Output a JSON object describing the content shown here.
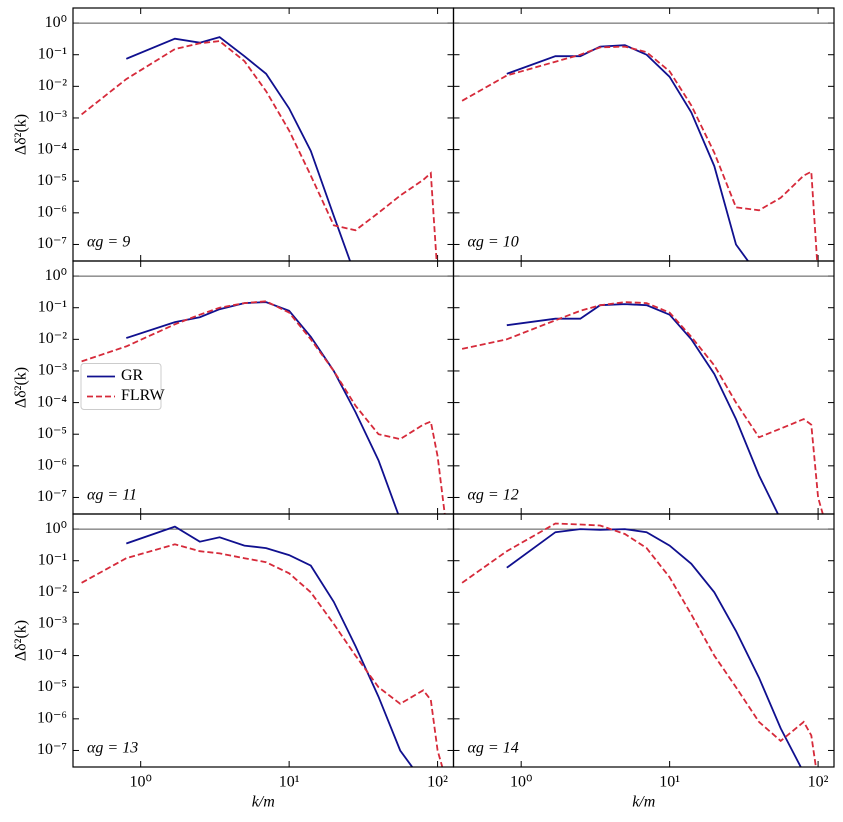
{
  "chart_data": [
    {
      "type": "line",
      "annotation": "αg = 9",
      "ylabel": "Δδ²(k)",
      "xlim": [
        0.35,
        128
      ],
      "ylim": [
        3e-08,
        3
      ],
      "log": true,
      "hline": 1,
      "yticks": [
        {
          "value": 1,
          "label": "10⁰"
        },
        {
          "value": 0.1,
          "label": "10⁻¹"
        },
        {
          "value": 0.01,
          "label": "10⁻²"
        },
        {
          "value": 0.001,
          "label": "10⁻³"
        },
        {
          "value": 0.0001,
          "label": "10⁻⁴"
        },
        {
          "value": 1e-05,
          "label": "10⁻⁵"
        },
        {
          "value": 1e-06,
          "label": "10⁻⁶"
        },
        {
          "value": 1e-07,
          "label": "10⁻⁷"
        }
      ],
      "x": [
        0.4,
        0.8,
        1.7,
        2.5,
        3.4,
        5,
        7,
        10,
        14,
        20,
        28,
        40,
        56,
        80,
        90,
        100,
        115
      ],
      "series": [
        {
          "color": "#10108f",
          "dash": false,
          "values": [
            null,
            0.074,
            0.32,
            0.24,
            0.36,
            0.09,
            0.025,
            0.002,
            9e-05,
            8e-07,
            1e-08,
            null,
            null,
            null,
            null,
            null,
            null
          ]
        },
        {
          "color": "#d62a3a",
          "dash": true,
          "values": [
            0.0013,
            0.017,
            0.15,
            0.23,
            0.27,
            0.063,
            0.007,
            0.0004,
            1.5e-05,
            4e-07,
            2.8e-07,
            1e-06,
            3.5e-06,
            1.1e-05,
            1.8e-05,
            1e-08,
            null
          ]
        }
      ]
    },
    {
      "type": "line",
      "annotation": "αg = 10",
      "xlim": [
        0.35,
        128
      ],
      "ylim": [
        3e-08,
        3
      ],
      "log": true,
      "hline": 1,
      "x": [
        0.4,
        0.8,
        1.7,
        2.5,
        3.4,
        5,
        7,
        10,
        14,
        20,
        28,
        40,
        56,
        80,
        90,
        100,
        115
      ],
      "series": [
        {
          "color": "#10108f",
          "dash": false,
          "values": [
            null,
            0.025,
            0.09,
            0.09,
            0.18,
            0.2,
            0.1,
            0.02,
            0.0015,
            3e-05,
            1e-07,
            1e-08,
            null,
            null,
            null,
            null,
            null
          ]
        },
        {
          "color": "#d62a3a",
          "dash": true,
          "values": [
            0.0035,
            0.022,
            0.06,
            0.1,
            0.17,
            0.18,
            0.12,
            0.03,
            0.0025,
            8e-05,
            1.5e-06,
            1.2e-06,
            3e-06,
            1.5e-05,
            2e-05,
            1e-08,
            null
          ]
        }
      ]
    },
    {
      "type": "line",
      "annotation": "αg = 11",
      "ylabel": "Δδ²(k)",
      "xlim": [
        0.35,
        128
      ],
      "ylim": [
        3e-08,
        3
      ],
      "log": true,
      "hline": 1,
      "legend": "center left",
      "yticks": [
        {
          "value": 1,
          "label": "10⁰"
        },
        {
          "value": 0.1,
          "label": "10⁻¹"
        },
        {
          "value": 0.01,
          "label": "10⁻²"
        },
        {
          "value": 0.001,
          "label": "10⁻³"
        },
        {
          "value": 0.0001,
          "label": "10⁻⁴"
        },
        {
          "value": 1e-05,
          "label": "10⁻⁵"
        },
        {
          "value": 1e-06,
          "label": "10⁻⁶"
        },
        {
          "value": 1e-07,
          "label": "10⁻⁷"
        }
      ],
      "x": [
        0.4,
        0.8,
        1.7,
        2.5,
        3.4,
        5,
        7,
        10,
        14,
        20,
        28,
        40,
        56,
        80,
        90,
        100,
        115
      ],
      "series": [
        {
          "name": "GR",
          "color": "#10108f",
          "dash": false,
          "values": [
            null,
            0.011,
            0.035,
            0.05,
            0.09,
            0.14,
            0.15,
            0.08,
            0.012,
            0.001,
            5e-05,
            1.5e-06,
            2e-08,
            null,
            null,
            null,
            null
          ]
        },
        {
          "name": "FLRW",
          "color": "#d62a3a",
          "dash": true,
          "values": [
            0.002,
            0.006,
            0.03,
            0.06,
            0.1,
            0.14,
            0.16,
            0.07,
            0.01,
            0.001,
            8e-05,
            1e-05,
            7e-06,
            2e-05,
            2.5e-05,
            2e-06,
            1e-08
          ]
        }
      ]
    },
    {
      "type": "line",
      "annotation": "αg = 12",
      "xlim": [
        0.35,
        128
      ],
      "ylim": [
        3e-08,
        3
      ],
      "log": true,
      "hline": 1,
      "x": [
        0.4,
        0.8,
        1.7,
        2.5,
        3.4,
        5,
        7,
        10,
        14,
        20,
        28,
        40,
        56,
        80,
        90,
        100,
        115
      ],
      "series": [
        {
          "color": "#10108f",
          "dash": false,
          "values": [
            null,
            0.028,
            0.045,
            0.045,
            0.12,
            0.13,
            0.12,
            0.06,
            0.01,
            0.0008,
            3e-05,
            5e-07,
            2e-08,
            null,
            null,
            null,
            null
          ]
        },
        {
          "color": "#d62a3a",
          "dash": true,
          "values": [
            0.005,
            0.01,
            0.04,
            0.08,
            0.12,
            0.15,
            0.14,
            0.07,
            0.012,
            0.0015,
            0.0001,
            8e-06,
            1.5e-05,
            3e-05,
            2e-05,
            1e-07,
            1e-08
          ]
        }
      ]
    },
    {
      "type": "line",
      "annotation": "αg = 13",
      "ylabel": "Δδ²(k)",
      "xlabel": "k/m",
      "xlim": [
        0.35,
        128
      ],
      "ylim": [
        3e-08,
        3
      ],
      "log": true,
      "hline": 1,
      "xticks": [
        {
          "value": 1,
          "label": "10⁰"
        },
        {
          "value": 10,
          "label": "10¹"
        },
        {
          "value": 100,
          "label": "10²"
        }
      ],
      "yticks": [
        {
          "value": 1,
          "label": "10⁰"
        },
        {
          "value": 0.1,
          "label": "10⁻¹"
        },
        {
          "value": 0.01,
          "label": "10⁻²"
        },
        {
          "value": 0.001,
          "label": "10⁻³"
        },
        {
          "value": 0.0001,
          "label": "10⁻⁴"
        },
        {
          "value": 1e-05,
          "label": "10⁻⁵"
        },
        {
          "value": 1e-06,
          "label": "10⁻⁶"
        },
        {
          "value": 1e-07,
          "label": "10⁻⁷"
        }
      ],
      "x": [
        0.4,
        0.8,
        1.7,
        2.5,
        3.4,
        5,
        7,
        10,
        14,
        20,
        28,
        40,
        56,
        80,
        90,
        100,
        115
      ],
      "series": [
        {
          "color": "#10108f",
          "dash": false,
          "values": [
            null,
            0.35,
            1.2,
            0.4,
            0.55,
            0.3,
            0.25,
            0.15,
            0.07,
            0.005,
            0.0002,
            5e-06,
            1e-07,
            1e-08,
            null,
            null,
            null
          ]
        },
        {
          "color": "#d62a3a",
          "dash": true,
          "values": [
            0.02,
            0.12,
            0.33,
            0.2,
            0.17,
            0.12,
            0.09,
            0.04,
            0.01,
            0.001,
            0.0001,
            1e-05,
            3e-06,
            8e-06,
            4e-06,
            1e-07,
            1e-08
          ]
        }
      ]
    },
    {
      "type": "line",
      "annotation": "αg = 14",
      "xlabel": "k/m",
      "xlim": [
        0.35,
        128
      ],
      "ylim": [
        3e-08,
        3
      ],
      "log": true,
      "hline": 1,
      "xticks": [
        {
          "value": 1,
          "label": "10⁰"
        },
        {
          "value": 10,
          "label": "10¹"
        },
        {
          "value": 100,
          "label": "10²"
        }
      ],
      "x": [
        0.4,
        0.8,
        1.7,
        2.5,
        3.4,
        5,
        7,
        10,
        14,
        20,
        28,
        40,
        56,
        80,
        90,
        100,
        115
      ],
      "series": [
        {
          "color": "#10108f",
          "dash": false,
          "values": [
            null,
            0.06,
            0.8,
            1.0,
            0.95,
            1.0,
            0.8,
            0.3,
            0.08,
            0.01,
            0.0006,
            2e-05,
            5e-07,
            2e-08,
            null,
            null,
            null
          ]
        },
        {
          "color": "#d62a3a",
          "dash": true,
          "values": [
            0.02,
            0.2,
            1.5,
            1.4,
            1.3,
            0.7,
            0.25,
            0.03,
            0.002,
            0.0001,
            1e-05,
            8e-07,
            2e-07,
            8e-07,
            3e-07,
            1e-08,
            null
          ]
        }
      ]
    }
  ]
}
